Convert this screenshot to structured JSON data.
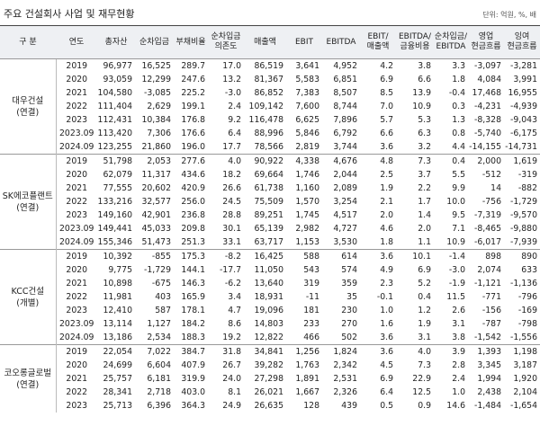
{
  "header": {
    "title": "주요 건설회사 사업 및 재무현황",
    "unit": "단위: 억원, %, 배"
  },
  "table": {
    "columns": [
      "구 분",
      "연도",
      "총자산",
      "순차입금",
      "부채비율",
      "순차입금\n의존도",
      "매출액",
      "EBIT",
      "EBITDA",
      "EBIT/\n매출액",
      "EBITDA/\n금융비용",
      "순차입금/\nEBITDA",
      "영업\n현금흐름",
      "잉여\n현금흐름"
    ],
    "groups": [
      {
        "label": "대우건설",
        "sublabel": "(연결)",
        "rows": [
          [
            "2019",
            "96,977",
            "16,525",
            "289.7",
            "17.0",
            "86,519",
            "3,641",
            "4,952",
            "4.2",
            "3.8",
            "3.3",
            "-3,097",
            "-3,281"
          ],
          [
            "2020",
            "93,059",
            "12,299",
            "247.6",
            "13.2",
            "81,367",
            "5,583",
            "6,851",
            "6.9",
            "6.6",
            "1.8",
            "4,084",
            "3,991"
          ],
          [
            "2021",
            "104,580",
            "-3,085",
            "225.2",
            "-3.0",
            "86,852",
            "7,383",
            "8,507",
            "8.5",
            "13.9",
            "-0.4",
            "17,468",
            "16,955"
          ],
          [
            "2022",
            "111,404",
            "2,629",
            "199.1",
            "2.4",
            "109,142",
            "7,600",
            "8,744",
            "7.0",
            "10.9",
            "0.3",
            "-4,231",
            "-4,939"
          ],
          [
            "2023",
            "112,431",
            "10,384",
            "176.8",
            "9.2",
            "116,478",
            "6,625",
            "7,896",
            "5.7",
            "5.3",
            "1.3",
            "-8,328",
            "-9,043"
          ],
          [
            "2023.09",
            "113,420",
            "7,306",
            "176.6",
            "6.4",
            "88,996",
            "5,846",
            "6,792",
            "6.6",
            "6.3",
            "0.8",
            "-5,740",
            "-6,175"
          ],
          [
            "2024.09",
            "123,255",
            "21,860",
            "196.0",
            "17.7",
            "78,566",
            "2,819",
            "3,744",
            "3.6",
            "3.2",
            "4.4",
            "-14,155",
            "-14,731"
          ]
        ]
      },
      {
        "label": "SK에코플랜트",
        "sublabel": "(연결)",
        "rows": [
          [
            "2019",
            "51,798",
            "2,053",
            "277.6",
            "4.0",
            "90,922",
            "4,338",
            "4,676",
            "4.8",
            "7.3",
            "0.4",
            "2,000",
            "1,619"
          ],
          [
            "2020",
            "62,079",
            "11,317",
            "434.6",
            "18.2",
            "69,664",
            "1,746",
            "2,044",
            "2.5",
            "3.7",
            "5.5",
            "-512",
            "-319"
          ],
          [
            "2021",
            "77,555",
            "20,602",
            "420.9",
            "26.6",
            "61,738",
            "1,160",
            "2,089",
            "1.9",
            "2.2",
            "9.9",
            "14",
            "-882"
          ],
          [
            "2022",
            "133,216",
            "32,577",
            "256.0",
            "24.5",
            "75,509",
            "1,570",
            "3,254",
            "2.1",
            "1.7",
            "10.0",
            "-756",
            "-1,729"
          ],
          [
            "2023",
            "149,160",
            "42,901",
            "236.8",
            "28.8",
            "89,251",
            "1,745",
            "4,517",
            "2.0",
            "1.4",
            "9.5",
            "-7,319",
            "-9,570"
          ],
          [
            "2023.09",
            "149,441",
            "45,033",
            "209.8",
            "30.1",
            "65,139",
            "2,982",
            "4,727",
            "4.6",
            "2.0",
            "7.1",
            "-8,465",
            "-9,880"
          ],
          [
            "2024.09",
            "155,346",
            "51,473",
            "251.3",
            "33.1",
            "63,717",
            "1,153",
            "3,530",
            "1.8",
            "1.1",
            "10.9",
            "-6,017",
            "-7,939"
          ]
        ]
      },
      {
        "label": "KCC건설",
        "sublabel": "(개별)",
        "rows": [
          [
            "2019",
            "10,392",
            "-855",
            "175.3",
            "-8.2",
            "16,425",
            "588",
            "614",
            "3.6",
            "10.1",
            "-1.4",
            "898",
            "890"
          ],
          [
            "2020",
            "9,775",
            "-1,729",
            "144.1",
            "-17.7",
            "11,050",
            "543",
            "574",
            "4.9",
            "6.9",
            "-3.0",
            "2,074",
            "633"
          ],
          [
            "2021",
            "10,898",
            "-675",
            "146.3",
            "-6.2",
            "13,640",
            "319",
            "359",
            "2.3",
            "5.2",
            "-1.9",
            "-1,121",
            "-1,136"
          ],
          [
            "2022",
            "11,981",
            "403",
            "165.9",
            "3.4",
            "18,931",
            "-11",
            "35",
            "-0.1",
            "0.4",
            "11.5",
            "-771",
            "-796"
          ],
          [
            "2023",
            "12,410",
            "587",
            "178.1",
            "4.7",
            "19,096",
            "181",
            "230",
            "1.0",
            "1.2",
            "2.6",
            "-156",
            "-169"
          ],
          [
            "2023.09",
            "13,114",
            "1,127",
            "184.2",
            "8.6",
            "14,803",
            "233",
            "270",
            "1.6",
            "1.9",
            "3.1",
            "-787",
            "-798"
          ],
          [
            "2024.09",
            "13,186",
            "2,534",
            "188.3",
            "19.2",
            "12,822",
            "466",
            "502",
            "3.6",
            "3.1",
            "3.8",
            "-1,542",
            "-1,556"
          ]
        ]
      },
      {
        "label": "코오롱글로벌",
        "sublabel": "(연결)",
        "rows": [
          [
            "2019",
            "22,054",
            "7,022",
            "384.7",
            "31.8",
            "34,841",
            "1,256",
            "1,824",
            "3.6",
            "4.0",
            "3.9",
            "1,393",
            "1,198"
          ],
          [
            "2020",
            "24,699",
            "6,604",
            "407.9",
            "26.7",
            "39,282",
            "1,763",
            "2,342",
            "4.5",
            "7.3",
            "2.8",
            "3,345",
            "3,187"
          ],
          [
            "2021",
            "25,757",
            "6,181",
            "319.9",
            "24.0",
            "27,298",
            "1,891",
            "2,531",
            "6.9",
            "22.9",
            "2.4",
            "1,994",
            "1,920"
          ],
          [
            "2022",
            "28,341",
            "2,718",
            "403.0",
            "8.1",
            "26,021",
            "1,667",
            "2,326",
            "6.4",
            "12.5",
            "1.0",
            "2,438",
            "2,104"
          ],
          [
            "2023",
            "25,713",
            "6,396",
            "364.3",
            "24.9",
            "26,635",
            "128",
            "439",
            "0.5",
            "0.9",
            "14.6",
            "-1,484",
            "-1,654"
          ]
        ]
      }
    ]
  }
}
